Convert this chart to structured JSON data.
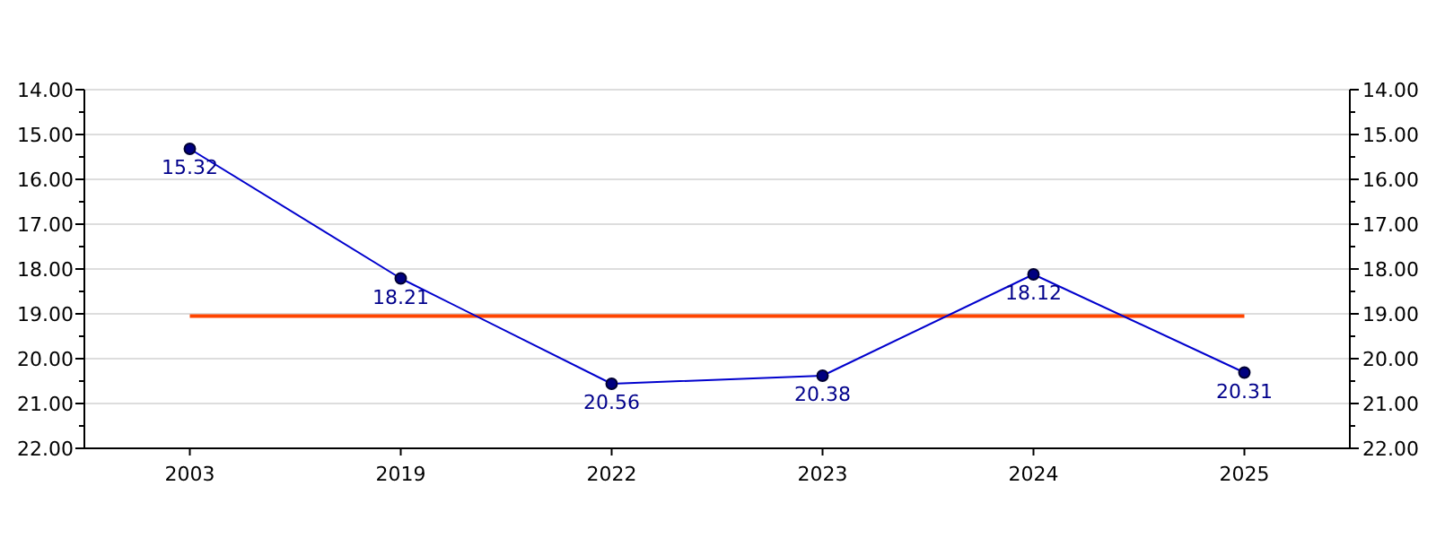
{
  "chart_data": {
    "type": "line",
    "categories": [
      "2003",
      "2019",
      "2022",
      "2023",
      "2024",
      "2025"
    ],
    "series": [
      {
        "color": "#0000cd",
        "values": [
          15.32,
          18.21,
          20.56,
          20.38,
          18.12,
          20.31
        ]
      }
    ],
    "ylim": [
      22,
      14
    ],
    "yticks": [
      {
        "value": 14,
        "label": "14.00"
      },
      {
        "value": 15,
        "label": "15.00"
      },
      {
        "value": 16,
        "label": "16.00"
      },
      {
        "value": 17,
        "label": "17.00"
      },
      {
        "value": 18,
        "label": "18.00"
      },
      {
        "value": 19,
        "label": "19.00"
      },
      {
        "value": 20,
        "label": "20.00"
      },
      {
        "value": 21,
        "label": "21.00"
      },
      {
        "value": 22,
        "label": "22.00"
      }
    ],
    "y2lim": [
      22,
      14
    ],
    "y2ticks": [
      {
        "value": 14,
        "label": "14.00"
      },
      {
        "value": 15,
        "label": "15.00"
      },
      {
        "value": 16,
        "label": "16.00"
      },
      {
        "value": 17,
        "label": "17.00"
      },
      {
        "value": 18,
        "label": "18.00"
      },
      {
        "value": 19,
        "label": "19.00"
      },
      {
        "value": 20,
        "label": "20.00"
      },
      {
        "value": 21,
        "label": "21.00"
      },
      {
        "value": 22,
        "label": "22.00"
      }
    ],
    "ref_lines": [
      {
        "axis": "y",
        "value": 19.05,
        "color": "#ff4500"
      }
    ],
    "grid": "y",
    "marker": "circle",
    "data_labels": true
  }
}
